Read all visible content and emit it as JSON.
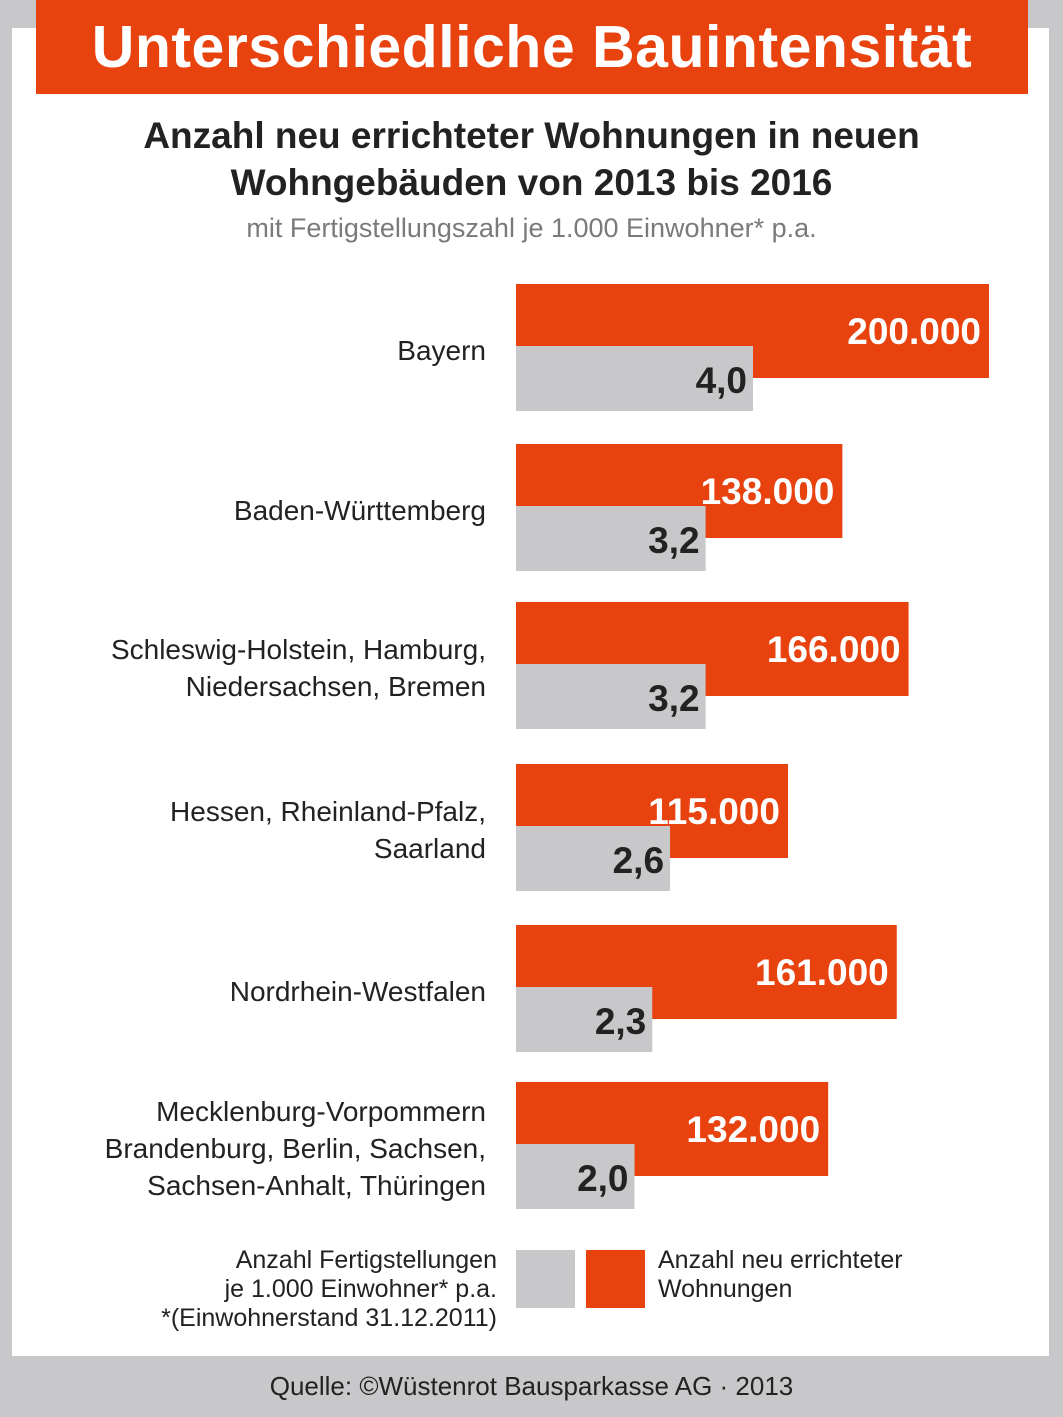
{
  "title": "Unterschiedliche Bauintensität",
  "heading": [
    "Anzahl neu errichteter Wohnungen in neuen",
    "Wohngebäuden von 2013 bis 2016"
  ],
  "subheading": "mit Fertigstellungszahl je 1.000 Einwohner* p.a.",
  "chart_data": {
    "type": "bar",
    "orientation": "horizontal",
    "categories": [
      [
        "Bayern"
      ],
      [
        "Baden-Württemberg"
      ],
      [
        "Schleswig-Holstein, Hamburg,",
        "Niedersachsen, Bremen"
      ],
      [
        "Hessen, Rheinland-Pfalz,",
        "Saarland"
      ],
      [
        "Nordrhein-Westfalen"
      ],
      [
        "Mecklenburg-Vorpommern",
        "Brandenburg, Berlin, Sachsen,",
        "Sachsen-Anhalt, Thüringen"
      ]
    ],
    "series": [
      {
        "name": "Anzahl neu errichteter Wohnungen",
        "color": "#e8420e",
        "values": [
          200000,
          138000,
          166000,
          115000,
          161000,
          132000
        ],
        "labels": [
          "200.000",
          "138.000",
          "166.000",
          "115.000",
          "161.000",
          "132.000"
        ]
      },
      {
        "name": "Anzahl Fertigstellungen je 1.000 Einwohner* p.a.",
        "color": "#c8c8ca",
        "values": [
          4.0,
          3.2,
          3.2,
          2.6,
          2.3,
          2.0
        ],
        "labels": [
          "4,0",
          "3,2",
          "3,2",
          "2,6",
          "2,3",
          "2,0"
        ]
      }
    ]
  },
  "legend": {
    "grey": [
      "Anzahl Fertigstellungen",
      "je 1.000 Einwohner* p.a.",
      "*(Einwohnerstand 31.12.2011)"
    ],
    "orange": [
      "Anzahl neu errichteter",
      "Wohnungen"
    ]
  },
  "source": "Quelle: ©Wüstenrot Bausparkasse AG · 2013"
}
